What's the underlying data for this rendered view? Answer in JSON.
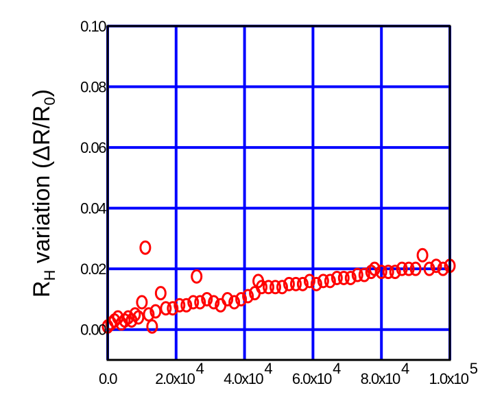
{
  "chart_data": {
    "type": "scatter",
    "y_label": {
      "parts": [
        "R",
        "H",
        " variation (ΔR/R",
        "0",
        ")"
      ]
    },
    "x": [
      0,
      1000,
      2000,
      3000,
      4000,
      5000,
      6000,
      7000,
      8000,
      9000,
      10000,
      11000,
      12000,
      13000,
      14000,
      15500,
      17000,
      19000,
      21000,
      23000,
      25000,
      26000,
      27000,
      29000,
      31000,
      33000,
      35000,
      37000,
      39000,
      41000,
      43000,
      44000,
      45000,
      47000,
      49000,
      51000,
      53000,
      55000,
      57000,
      59000,
      61000,
      63000,
      65000,
      67000,
      69000,
      71000,
      73000,
      75000,
      77000,
      78000,
      80000,
      82000,
      84000,
      86000,
      88000,
      90000,
      92000,
      94000,
      96000,
      98000,
      100000
    ],
    "series": [
      {
        "color": "#ff0000",
        "marker": "open-circle",
        "values": [
          0.001,
          0.002,
          0.003,
          0.004,
          0.002,
          0.003,
          0.004,
          0.003,
          0.005,
          0.004,
          0.009,
          0.027,
          0.005,
          0.001,
          0.006,
          0.012,
          0.007,
          0.007,
          0.008,
          0.008,
          0.009,
          0.0175,
          0.009,
          0.01,
          0.009,
          0.008,
          0.01,
          0.009,
          0.01,
          0.011,
          0.012,
          0.016,
          0.014,
          0.014,
          0.014,
          0.014,
          0.015,
          0.015,
          0.015,
          0.016,
          0.015,
          0.016,
          0.016,
          0.017,
          0.017,
          0.017,
          0.018,
          0.018,
          0.019,
          0.02,
          0.019,
          0.019,
          0.019,
          0.02,
          0.02,
          0.02,
          0.0245,
          0.02,
          0.021,
          0.02,
          0.021
        ]
      }
    ],
    "xlim": [
      0,
      100000
    ],
    "ylim": [
      -0.01,
      0.1
    ],
    "xticks": [
      {
        "value": 0,
        "label": "0.0"
      },
      {
        "value": 20000,
        "label": "2.0x10",
        "exponent": "4"
      },
      {
        "value": 40000,
        "label": "4.0x10",
        "exponent": "4"
      },
      {
        "value": 60000,
        "label": "6.0x10",
        "exponent": "4"
      },
      {
        "value": 80000,
        "label": "8.0x10",
        "exponent": "4"
      },
      {
        "value": 100000,
        "label": "1.0x10",
        "exponent": "5"
      }
    ],
    "yticks": [
      {
        "value": 0,
        "label": "0.00"
      },
      {
        "value": 0.02,
        "label": "0.02"
      },
      {
        "value": 0.04,
        "label": "0.04"
      },
      {
        "value": 0.06,
        "label": "0.06"
      },
      {
        "value": 0.08,
        "label": "0.08"
      },
      {
        "value": 0.1,
        "label": "0.10"
      }
    ],
    "grid": true,
    "grid_color": "#0000ff"
  }
}
